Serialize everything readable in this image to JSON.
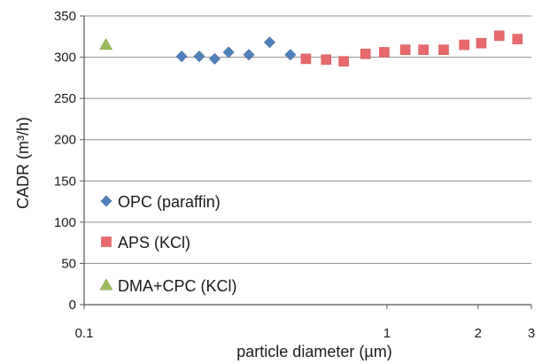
{
  "chart_data": {
    "type": "scatter",
    "xlabel": "particle diameter (µm)",
    "ylabel": "CADR (m³/h)",
    "xscale": "log",
    "xlim": [
      0.1,
      3
    ],
    "ylim": [
      0,
      350
    ],
    "x_ticks": [
      {
        "value": 0.1,
        "label": "0.1"
      },
      {
        "value": 1,
        "label": "1"
      },
      {
        "value": 2,
        "label": "2"
      },
      {
        "value": 3,
        "label": "3"
      }
    ],
    "y_ticks": [
      {
        "value": 0,
        "label": "0"
      },
      {
        "value": 50,
        "label": "50"
      },
      {
        "value": 100,
        "label": "100"
      },
      {
        "value": 150,
        "label": "150"
      },
      {
        "value": 200,
        "label": "200"
      },
      {
        "value": 250,
        "label": "250"
      },
      {
        "value": 300,
        "label": "300"
      },
      {
        "value": 350,
        "label": "350"
      }
    ],
    "grid": {
      "horizontal": true,
      "vertical": false
    },
    "legend_position": "lower-left",
    "series": [
      {
        "name": "OPC (paraffin)",
        "marker": "diamond",
        "color": "#4F81BD",
        "points": [
          {
            "x": 0.21,
            "y": 301
          },
          {
            "x": 0.24,
            "y": 301
          },
          {
            "x": 0.27,
            "y": 298
          },
          {
            "x": 0.3,
            "y": 306
          },
          {
            "x": 0.35,
            "y": 303
          },
          {
            "x": 0.41,
            "y": 318
          },
          {
            "x": 0.48,
            "y": 303
          }
        ]
      },
      {
        "name": "APS (KCl)",
        "marker": "square",
        "color": "#E8696C",
        "points": [
          {
            "x": 0.54,
            "y": 298
          },
          {
            "x": 0.63,
            "y": 297
          },
          {
            "x": 0.72,
            "y": 295
          },
          {
            "x": 0.85,
            "y": 304
          },
          {
            "x": 0.98,
            "y": 306
          },
          {
            "x": 1.15,
            "y": 309
          },
          {
            "x": 1.32,
            "y": 309
          },
          {
            "x": 1.54,
            "y": 309
          },
          {
            "x": 1.8,
            "y": 315
          },
          {
            "x": 2.05,
            "y": 317
          },
          {
            "x": 2.35,
            "y": 326
          },
          {
            "x": 2.7,
            "y": 322
          }
        ]
      },
      {
        "name": "DMA+CPC (KCl)",
        "marker": "triangle",
        "color": "#9BBB59",
        "points": [
          {
            "x": 0.118,
            "y": 315
          }
        ]
      }
    ]
  }
}
